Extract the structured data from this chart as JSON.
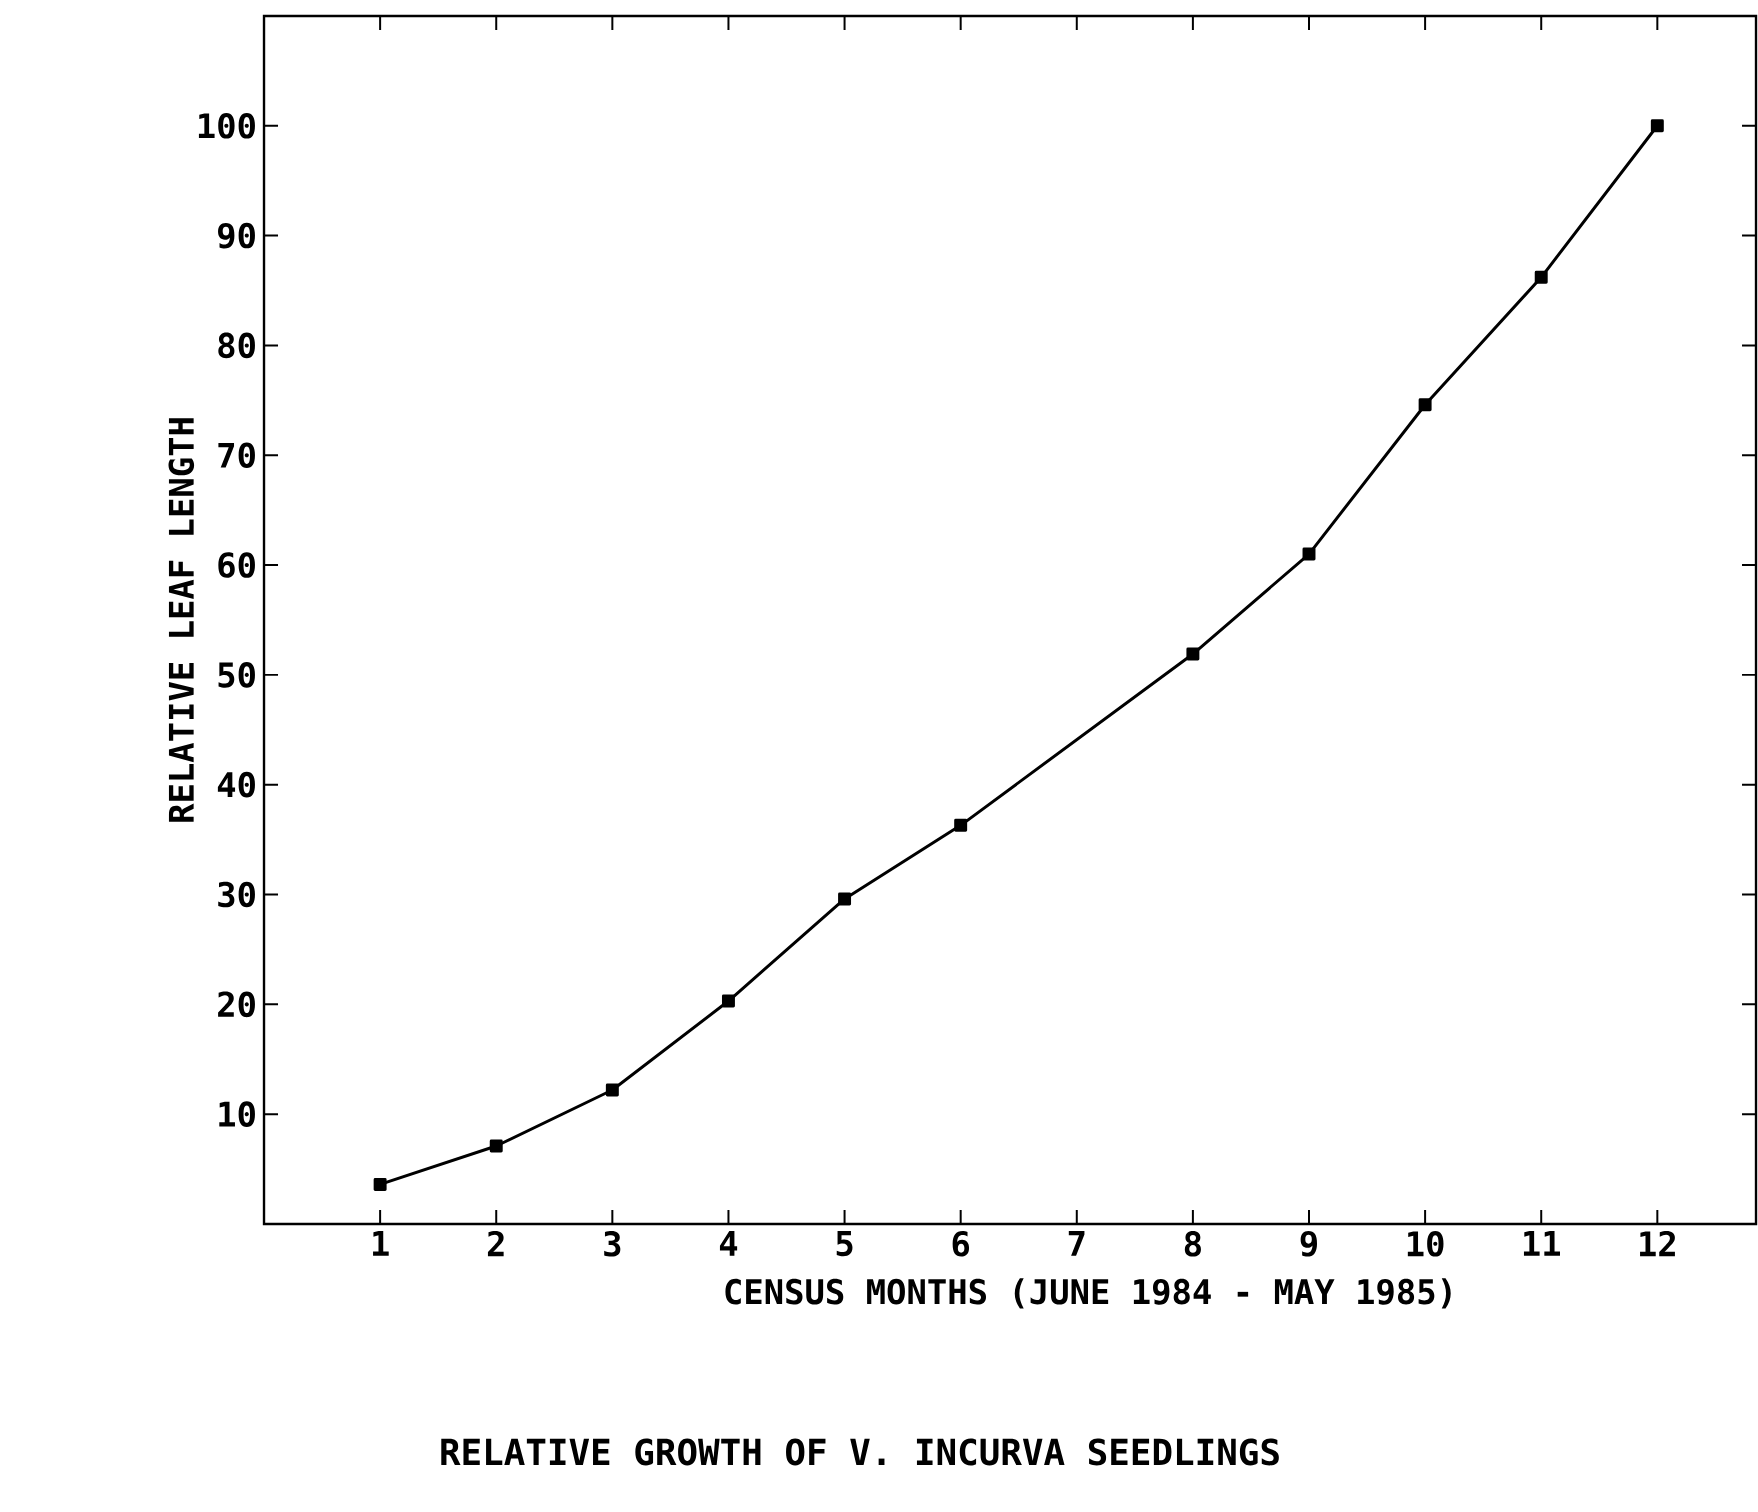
{
  "chart_data": {
    "type": "line",
    "title": "RELATIVE GROWTH OF V. INCURVA SEEDLINGS",
    "xlabel": "CENSUS MONTHS (JUNE 1984 - MAY 1985)",
    "ylabel": "RELATIVE LEAF LENGTH",
    "x": [
      1,
      2,
      3,
      4,
      5,
      6,
      8,
      9,
      10,
      11,
      12
    ],
    "values": [
      3.6,
      7.1,
      12.2,
      20.3,
      29.6,
      36.3,
      51.9,
      61,
      74.6,
      86.2,
      100
    ],
    "color": "#000000",
    "marker": "square",
    "line_style": "solid",
    "grid": false,
    "xlim": [
      0,
      12.85
    ],
    "ylim": [
      0,
      110
    ],
    "xticks": [
      1,
      2,
      3,
      4,
      5,
      6,
      7,
      8,
      9,
      10,
      11,
      12
    ],
    "yticks": [
      10,
      20,
      30,
      40,
      50,
      60,
      70,
      80,
      90,
      100
    ]
  }
}
